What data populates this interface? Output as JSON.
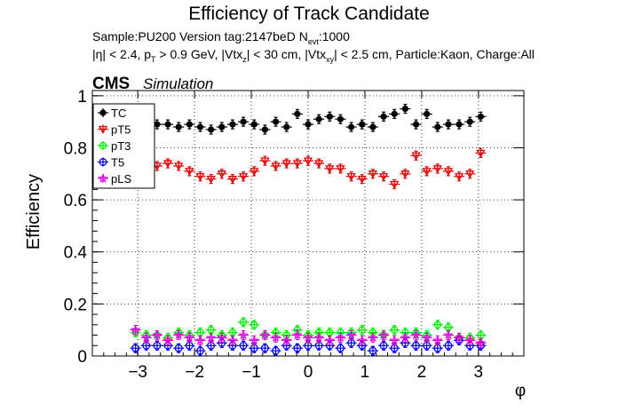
{
  "header": {
    "title": "Efficiency of Track Candidate",
    "line1_prefix": "Sample:PU200   Version tag:2147beD  N",
    "line1_sub": "evt",
    "line1_suffix": ":1000",
    "line2_p1": "|η| < 2.4, p",
    "line2_s1": "T",
    "line2_p2": " > 0.9 GeV, |Vtx",
    "line2_s2": "z",
    "line2_p3": "| < 30 cm, |Vtx",
    "line2_s3": "xy",
    "line2_p4": "| < 2.5 cm, Particle:Kaon, Charge:All",
    "cms": "CMS",
    "simulation": "Simulation"
  },
  "colors": {
    "TC": "#000000",
    "pT5": "#e00000",
    "pT3": "#00ee00",
    "T5": "#0000ee",
    "pLS": "#dd00dd"
  },
  "chart_data": {
    "type": "scatter",
    "xlabel": "φ",
    "ylabel": "Efficiency",
    "xlim": [
      -3.8,
      3.8
    ],
    "ylim": [
      0,
      1.02
    ],
    "x_ticks": [
      -3,
      -2,
      -1,
      0,
      1,
      2,
      3
    ],
    "x_tick_labels": [
      "−3",
      "−2",
      "−1",
      "0",
      "1",
      "2",
      "3"
    ],
    "y_ticks": [
      0,
      0.2,
      0.4,
      0.6,
      0.8,
      1
    ],
    "y_tick_labels": [
      "0",
      "0.2",
      "0.4",
      "0.6",
      "0.8",
      "1"
    ],
    "legend_position": "top-left",
    "x": [
      -3.04,
      -2.85,
      -2.66,
      -2.47,
      -2.28,
      -2.09,
      -1.9,
      -1.71,
      -1.52,
      -1.33,
      -1.14,
      -0.95,
      -0.76,
      -0.57,
      -0.38,
      -0.19,
      0.0,
      0.19,
      0.38,
      0.57,
      0.76,
      0.95,
      1.14,
      1.33,
      1.52,
      1.71,
      1.9,
      2.09,
      2.28,
      2.47,
      2.66,
      2.85,
      3.04
    ],
    "series": [
      {
        "name": "TC",
        "marker": "filled-circle",
        "values": [
          0.87,
          0.88,
          0.89,
          0.89,
          0.88,
          0.89,
          0.88,
          0.87,
          0.88,
          0.89,
          0.9,
          0.89,
          0.87,
          0.9,
          0.88,
          0.93,
          0.89,
          0.91,
          0.92,
          0.91,
          0.88,
          0.89,
          0.88,
          0.92,
          0.93,
          0.95,
          0.89,
          0.93,
          0.88,
          0.89,
          0.89,
          0.9,
          0.92
        ]
      },
      {
        "name": "pT5",
        "marker": "open-triangle-down",
        "values": [
          0.72,
          0.72,
          0.73,
          0.74,
          0.73,
          0.71,
          0.69,
          0.68,
          0.7,
          0.68,
          0.69,
          0.71,
          0.75,
          0.73,
          0.74,
          0.74,
          0.75,
          0.74,
          0.72,
          0.72,
          0.69,
          0.68,
          0.7,
          0.69,
          0.66,
          0.7,
          0.77,
          0.71,
          0.72,
          0.71,
          0.69,
          0.7,
          0.78
        ]
      },
      {
        "name": "pT3",
        "marker": "open-circle-cross",
        "values": [
          0.09,
          0.08,
          0.08,
          0.07,
          0.09,
          0.08,
          0.09,
          0.1,
          0.08,
          0.09,
          0.13,
          0.12,
          0.08,
          0.09,
          0.08,
          0.1,
          0.08,
          0.09,
          0.09,
          0.09,
          0.09,
          0.1,
          0.09,
          0.08,
          0.1,
          0.09,
          0.09,
          0.08,
          0.12,
          0.11,
          0.07,
          0.07,
          0.08
        ]
      },
      {
        "name": "T5",
        "marker": "open-circle",
        "values": [
          0.03,
          0.04,
          0.04,
          0.04,
          0.03,
          0.04,
          0.02,
          0.04,
          0.05,
          0.04,
          0.04,
          0.03,
          0.03,
          0.02,
          0.04,
          0.03,
          0.04,
          0.04,
          0.04,
          0.03,
          0.05,
          0.04,
          0.02,
          0.04,
          0.03,
          0.05,
          0.04,
          0.04,
          0.03,
          0.04,
          0.06,
          0.04,
          0.04
        ]
      },
      {
        "name": "pLS",
        "marker": "open-star",
        "values": [
          0.1,
          0.07,
          0.08,
          0.06,
          0.08,
          0.07,
          0.06,
          0.07,
          0.07,
          0.06,
          0.08,
          0.06,
          0.08,
          0.07,
          0.06,
          0.08,
          0.07,
          0.07,
          0.06,
          0.07,
          0.08,
          0.06,
          0.07,
          0.08,
          0.06,
          0.07,
          0.08,
          0.07,
          0.06,
          0.08,
          0.07,
          0.06,
          0.05
        ]
      }
    ]
  }
}
